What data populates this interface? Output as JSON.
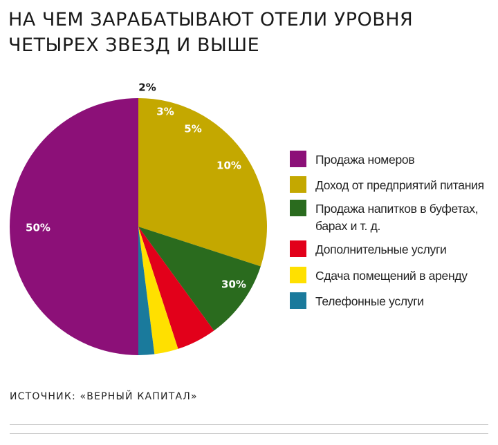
{
  "title": {
    "line1": "НА ЧЕМ ЗАРАБАТЫВАЮТ ОТЕЛИ УРОВНЯ",
    "line2": "ЧЕТЫРЕХ ЗВЕЗД И ВЫШЕ"
  },
  "source": "ИСТОЧНИК: «ВЕРНЫЙ КАПИТАЛ»",
  "chart_data": {
    "type": "pie",
    "title": "НА ЧЕМ ЗАРАБАТЫВАЮТ ОТЕЛИ УРОВНЯ ЧЕТЫРЕХ ЗВЕЗД И ВЫШЕ",
    "legend_position": "right",
    "slices": [
      {
        "label": "Продажа номеров",
        "legend_lines": [
          "Продажа номеров"
        ],
        "value": 50,
        "value_label": "50%",
        "color": "#8c1078"
      },
      {
        "label": "Доход от предприятий питания",
        "legend_lines": [
          "Доход от предприятий питания"
        ],
        "value": 30,
        "value_label": "30%",
        "color": "#c4a800"
      },
      {
        "label": "Продажа напитков в буфетах, барах и т. д.",
        "legend_lines": [
          "Продажа напитков в буфетах,",
          "барах и т. д."
        ],
        "value": 10,
        "value_label": "10%",
        "color": "#2a6b1e"
      },
      {
        "label": "Дополнительные услуги",
        "legend_lines": [
          "Дополнительные услуги"
        ],
        "value": 5,
        "value_label": "5%",
        "color": "#e2001a"
      },
      {
        "label": "Сдача помещений в аренду",
        "legend_lines": [
          "Сдача помещений в аренду"
        ],
        "value": 3,
        "value_label": "3%",
        "color": "#ffe000"
      },
      {
        "label": "Телефонные услуги",
        "legend_lines": [
          "Телефонные услуги"
        ],
        "value": 2,
        "value_label": "2%",
        "color": "#1a7a9c"
      }
    ]
  }
}
